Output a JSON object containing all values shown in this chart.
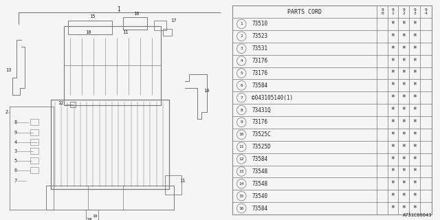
{
  "diagram_id": "A731C00043",
  "rows": [
    {
      "num": 1,
      "part": "73510",
      "c0": "",
      "c1": "*",
      "c2": "*",
      "c3": "*",
      "c4": ""
    },
    {
      "num": 2,
      "part": "73523",
      "c0": "",
      "c1": "*",
      "c2": "*",
      "c3": "*",
      "c4": ""
    },
    {
      "num": 3,
      "part": "73531",
      "c0": "",
      "c1": "*",
      "c2": "*",
      "c3": "*",
      "c4": ""
    },
    {
      "num": 4,
      "part": "73176",
      "c0": "",
      "c1": "*",
      "c2": "*",
      "c3": "*",
      "c4": ""
    },
    {
      "num": 5,
      "part": "73176",
      "c0": "",
      "c1": "*",
      "c2": "*",
      "c3": "*",
      "c4": ""
    },
    {
      "num": 6,
      "part": "73584",
      "c0": "",
      "c1": "*",
      "c2": "*",
      "c3": "*",
      "c4": ""
    },
    {
      "num": 7,
      "part": "©043105140(1)",
      "c0": "",
      "c1": "*",
      "c2": "*",
      "c3": "*",
      "c4": ""
    },
    {
      "num": 8,
      "part": "73431Q",
      "c0": "",
      "c1": "*",
      "c2": "*",
      "c3": "*",
      "c4": ""
    },
    {
      "num": 9,
      "part": "73176",
      "c0": "",
      "c1": "*",
      "c2": "*",
      "c3": "*",
      "c4": ""
    },
    {
      "num": 10,
      "part": "73525C",
      "c0": "",
      "c1": "*",
      "c2": "*",
      "c3": "*",
      "c4": ""
    },
    {
      "num": 11,
      "part": "73525D",
      "c0": "",
      "c1": "*",
      "c2": "*",
      "c3": "*",
      "c4": ""
    },
    {
      "num": 12,
      "part": "73584",
      "c0": "",
      "c1": "*",
      "c2": "*",
      "c3": "*",
      "c4": ""
    },
    {
      "num": 13,
      "part": "73548",
      "c0": "",
      "c1": "*",
      "c2": "*",
      "c3": "*",
      "c4": ""
    },
    {
      "num": 14,
      "part": "73548",
      "c0": "",
      "c1": "*",
      "c2": "*",
      "c3": "*",
      "c4": ""
    },
    {
      "num": 15,
      "part": "73540",
      "c0": "",
      "c1": "*",
      "c2": "*",
      "c3": "*",
      "c4": ""
    },
    {
      "num": 16,
      "part": "73584",
      "c0": "",
      "c1": "*",
      "c2": "*",
      "c3": "*",
      "c4": ""
    }
  ],
  "col_headers": [
    "9\n0",
    "9\n1",
    "9\n2",
    "9\n3",
    "9\n4"
  ],
  "bg_color": "#f5f5f5",
  "line_color": "#777777",
  "text_color": "#222222"
}
